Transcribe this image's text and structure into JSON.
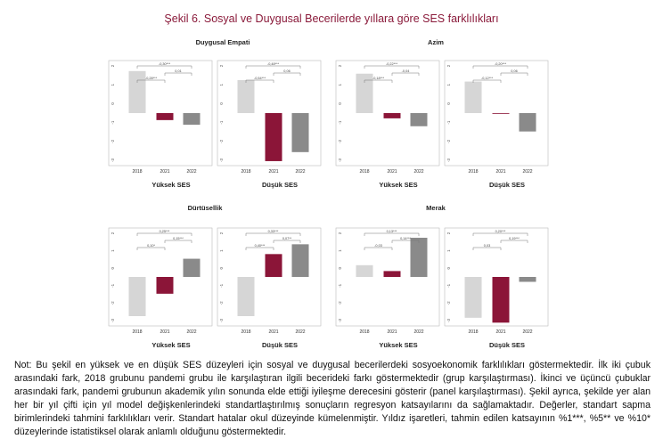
{
  "figure_title": "Şekil 6. Sosyal ve Duygusal Becerilerde yıllara göre SES farklılıkları",
  "note": "Not: Bu şekil en yüksek ve en düşük SES düzeyleri için sosyal ve duygusal becerilerdeki sosyoekonomik farklılıkları göstermektedir. İlk iki çubuk arasındaki fark, 2018 grubunu pandemi grubu ile karşılaştıran ilgili becerideki farkı göstermektedir (grup karşılaştırması). İkinci ve üçüncü çubuklar arasındaki fark, pandemi grubunun akademik yılın sonunda elde ettiği iyileşme derecesini gösterir (panel karşılaştırması). Şekil ayrıca, şekilde yer alan her bir yıl çifti için yıl model değişkenlerindeki standartlaştırılmış sonuçların regresyon katsayılarını da sağlamaktadır. Değerler, standart sapma birimlerindeki tahmini farklılıkları verir. Standart hatalar okul düzeyinde kümelenmiştir. Yıldız işaretleri, tahmin edilen katsayının %1***, %5** ve %10* düzeylerinde istatistiksel olarak anlamlı olduğunu göstermektedir.",
  "colors": {
    "2018": "#d6d6d6",
    "2021": "#8b1538",
    "2022": "#8a8a8a"
  },
  "chart_data": [
    {
      "type": "bar",
      "skill": "Duygusal Empati",
      "group": "Yüksek SES",
      "categories": [
        "2018",
        "2021",
        "2022"
      ],
      "values": [
        0.36,
        -0.06,
        -0.1
      ],
      "ylim": [
        -0.45,
        0.45
      ],
      "ticks": [
        "-3",
        "-2",
        "-1",
        "0",
        "1",
        "2"
      ],
      "annotations": [
        {
          "from": "2018",
          "to": "2021",
          "text": "-0,28***"
        },
        {
          "from": "2021",
          "to": "2022",
          "text": "0,01"
        },
        {
          "from": "2018",
          "to": "2022",
          "text": "-0,30***"
        }
      ]
    },
    {
      "type": "bar",
      "skill": "Duygusal Empati",
      "group": "Düşük SES",
      "categories": [
        "2018",
        "2021",
        "2022"
      ],
      "values": [
        0.22,
        -0.32,
        -0.26
      ],
      "ylim": [
        -0.35,
        0.35
      ],
      "ticks": [
        "-3",
        "-2",
        "-1",
        "0",
        "1",
        "2"
      ],
      "annotations": [
        {
          "from": "2018",
          "to": "2021",
          "text": "-0,54***"
        },
        {
          "from": "2021",
          "to": "2022",
          "text": "0,06"
        },
        {
          "from": "2018",
          "to": "2022",
          "text": "-0,48***"
        }
      ]
    },
    {
      "type": "bar",
      "skill": "Azim",
      "group": "Yüksek SES",
      "categories": [
        "2018",
        "2021",
        "2022"
      ],
      "values": [
        0.15,
        -0.02,
        -0.05
      ],
      "ylim": [
        -0.2,
        0.2
      ],
      "ticks": [
        "-3",
        "-2",
        "-1",
        "0",
        "1",
        "2"
      ],
      "annotations": [
        {
          "from": "2018",
          "to": "2021",
          "text": "-0,18***"
        },
        {
          "from": "2021",
          "to": "2022",
          "text": "-0,04"
        },
        {
          "from": "2018",
          "to": "2022",
          "text": "-0,22***"
        }
      ]
    },
    {
      "type": "bar",
      "skill": "Azim",
      "group": "Düşük SES",
      "categories": [
        "2018",
        "2021",
        "2022"
      ],
      "values": [
        0.12,
        0.0,
        -0.07
      ],
      "ylim": [
        -0.2,
        0.2
      ],
      "ticks": [
        "-3",
        "-2",
        "-1",
        "0",
        "1",
        "2"
      ],
      "annotations": [
        {
          "from": "2018",
          "to": "2021",
          "text": "-0,12***"
        },
        {
          "from": "2021",
          "to": "2022",
          "text": "0,06"
        },
        {
          "from": "2018",
          "to": "2022",
          "text": "-0,20***"
        }
      ]
    },
    {
      "type": "bar",
      "skill": "Dürtüsellik",
      "group": "Yüksek SES",
      "categories": [
        "2018",
        "2021",
        "2022"
      ],
      "values": [
        -0.28,
        -0.12,
        0.13
      ],
      "ylim": [
        -0.35,
        0.35
      ],
      "ticks": [
        "-3",
        "-2",
        "-1",
        "0",
        "1",
        "2"
      ],
      "annotations": [
        {
          "from": "2018",
          "to": "2021",
          "text": "0,10*"
        },
        {
          "from": "2021",
          "to": "2022",
          "text": "0,15***"
        },
        {
          "from": "2018",
          "to": "2022",
          "text": "0,25***"
        }
      ]
    },
    {
      "type": "bar",
      "skill": "Dürtüsellik",
      "group": "Düşük SES",
      "categories": [
        "2018",
        "2021",
        "2022"
      ],
      "values": [
        -0.24,
        0.14,
        0.2
      ],
      "ylim": [
        -0.3,
        0.3
      ],
      "ticks": [
        "-3",
        "-2",
        "-1",
        "0",
        "1",
        "2"
      ],
      "annotations": [
        {
          "from": "2018",
          "to": "2021",
          "text": "0,40***"
        },
        {
          "from": "2021",
          "to": "2022",
          "text": "0,07**"
        },
        {
          "from": "2018",
          "to": "2022",
          "text": "0,33***"
        }
      ]
    },
    {
      "type": "bar",
      "skill": "Merak",
      "group": "Yüksek SES",
      "categories": [
        "2018",
        "2021",
        "2022"
      ],
      "values": [
        0.06,
        0.03,
        0.2
      ],
      "ylim": [
        -0.25,
        0.25
      ],
      "ticks": [
        "-3",
        "-2",
        "-1",
        "0",
        "1",
        "2"
      ],
      "annotations": [
        {
          "from": "2018",
          "to": "2021",
          "text": "-0,03"
        },
        {
          "from": "2021",
          "to": "2022",
          "text": "0,14***"
        },
        {
          "from": "2018",
          "to": "2022",
          "text": "0,13***"
        }
      ]
    },
    {
      "type": "bar",
      "skill": "Merak",
      "group": "Düşük SES",
      "categories": [
        "2018",
        "2021",
        "2022"
      ],
      "values": [
        -0.25,
        -0.28,
        -0.03
      ],
      "ylim": [
        -0.3,
        0.3
      ],
      "ticks": [
        "-3",
        "-2",
        "-1",
        "0",
        "1",
        "2"
      ],
      "annotations": [
        {
          "from": "2018",
          "to": "2021",
          "text": "0,03"
        },
        {
          "from": "2021",
          "to": "2022",
          "text": "0,19***"
        },
        {
          "from": "2018",
          "to": "2022",
          "text": "0,20***"
        }
      ]
    }
  ]
}
